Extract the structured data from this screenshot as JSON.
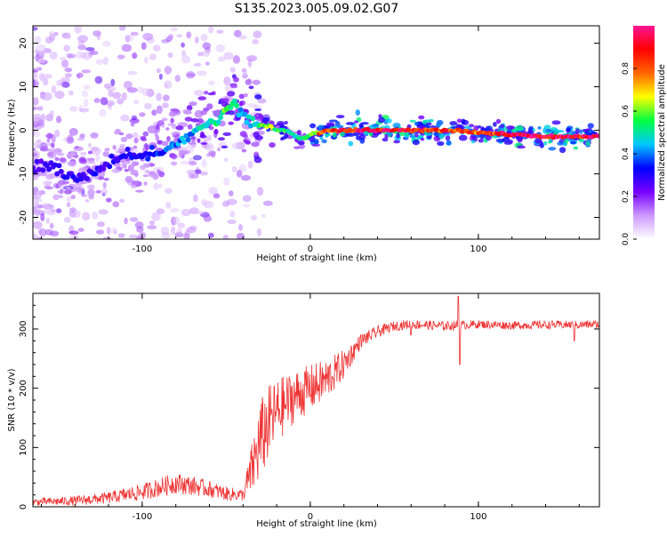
{
  "title": "S135.2023.005.09.02.G07",
  "colors": {
    "snr_line": "#ee3333",
    "axis": "#000000",
    "background": "#ffffff"
  },
  "chart_data": [
    {
      "type": "heatmap",
      "name": "spectrogram",
      "xlabel": "Height of straight line (km)",
      "ylabel": "Frequency (Hz)",
      "xlim": [
        -165,
        172
      ],
      "ylim": [
        -25,
        24
      ],
      "xticks": [
        -100,
        0,
        100
      ],
      "yticks": [
        -20,
        -10,
        0,
        10,
        20
      ],
      "colorbar": {
        "label": "Normalized spectral amplitude",
        "range": [
          0,
          1
        ],
        "ticks": [
          "0.0",
          "0.2",
          "0.4",
          "0.6",
          "0.8"
        ],
        "colormap": [
          "#ffffff",
          "#cc99ff",
          "#7700ff",
          "#0000ff",
          "#00c8ff",
          "#00ff40",
          "#ffff00",
          "#ff6600",
          "#ff0000",
          "#ff1493"
        ]
      },
      "ridge": {
        "x": [
          -160,
          -150,
          -140,
          -130,
          -120,
          -110,
          -100,
          -90,
          -80,
          -70,
          -60,
          -50,
          -45,
          -40,
          -35,
          -30,
          -25,
          -20,
          -15,
          -10,
          -5,
          0,
          5,
          10,
          20,
          40,
          60,
          80,
          100,
          120,
          140,
          172
        ],
        "freq": [
          -8,
          -9,
          -11,
          -10,
          -8,
          -6,
          -6,
          -5,
          -3,
          -1,
          2,
          4,
          6,
          4,
          2,
          1,
          1,
          0,
          0,
          -1,
          -2,
          -1,
          -0.5,
          0,
          0,
          0,
          0,
          0,
          -0.5,
          -1,
          -1.5,
          -1.5
        ],
        "amplitude": [
          0.25,
          0.3,
          0.3,
          0.3,
          0.28,
          0.3,
          0.33,
          0.35,
          0.4,
          0.42,
          0.48,
          0.55,
          0.5,
          0.4,
          0.48,
          0.55,
          0.6,
          0.55,
          0.55,
          0.5,
          0.5,
          0.6,
          0.75,
          0.85,
          0.9,
          0.92,
          0.88,
          0.82,
          0.82,
          0.9,
          0.95,
          0.9
        ]
      }
    },
    {
      "type": "line",
      "name": "snr",
      "xlabel": "Height of straight line (km)",
      "ylabel": "SNR (10 * v/v)",
      "xlim": [
        -165,
        172
      ],
      "ylim": [
        0,
        360
      ],
      "xticks": [
        -100,
        0,
        100
      ],
      "yticks": [
        0,
        100,
        200,
        300
      ],
      "trend": {
        "x": [
          -165,
          -140,
          -120,
          -100,
          -80,
          -60,
          -50,
          -40,
          -35,
          -30,
          -25,
          -20,
          -10,
          0,
          10,
          20,
          30,
          40,
          50,
          60,
          80,
          100,
          120,
          140,
          160,
          172
        ],
        "y": [
          8,
          10,
          15,
          25,
          40,
          30,
          22,
          20,
          60,
          110,
          140,
          160,
          185,
          200,
          215,
          240,
          280,
          295,
          305,
          308,
          305,
          308,
          306,
          307,
          307,
          308
        ],
        "noise": [
          6,
          8,
          10,
          14,
          18,
          14,
          12,
          10,
          45,
          70,
          65,
          55,
          45,
          40,
          35,
          25,
          12,
          10,
          8,
          8,
          8,
          7,
          7,
          7,
          7,
          7
        ]
      },
      "spikes": [
        {
          "x": 88,
          "y": 355
        },
        {
          "x": 89,
          "y": 240
        },
        {
          "x": 157,
          "y": 280
        },
        {
          "x": 60,
          "y": 290
        }
      ]
    }
  ]
}
